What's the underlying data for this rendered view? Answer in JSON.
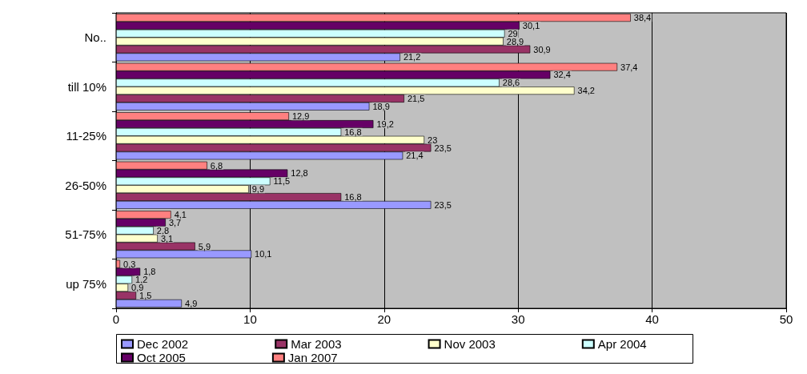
{
  "chart_data": {
    "type": "bar",
    "orientation": "horizontal",
    "categories": [
      "No..",
      "till 10%",
      "11-25%",
      "26-50%",
      "51-75%",
      "up 75%"
    ],
    "series": [
      {
        "name": "Dec 2002",
        "color": "#9999ff",
        "values": [
          21.2,
          18.9,
          21.4,
          23.5,
          10.1,
          4.9
        ],
        "value_labels": [
          "21,2",
          "18,9",
          "21,4",
          "23,5",
          "10,1",
          "4,9"
        ]
      },
      {
        "name": "Mar 2003",
        "color": "#993366",
        "values": [
          30.9,
          21.5,
          23.5,
          16.8,
          5.9,
          1.5
        ],
        "value_labels": [
          "30,9",
          "21,5",
          "23,5",
          "16,8",
          "5,9",
          "1,5"
        ]
      },
      {
        "name": "Nov 2003",
        "color": "#ffffcc",
        "values": [
          28.9,
          34.2,
          23,
          9.9,
          3.1,
          0.9
        ],
        "value_labels": [
          "28,9",
          "34,2",
          "23",
          "9,9",
          "3,1",
          "0,9"
        ]
      },
      {
        "name": "Apr 2004",
        "color": "#ccffff",
        "values": [
          29,
          28.6,
          16.8,
          11.5,
          2.8,
          1.2
        ],
        "value_labels": [
          "29",
          "28,6",
          "16,8",
          "11,5",
          "2,8",
          "1,2"
        ]
      },
      {
        "name": "Oct 2005",
        "color": "#660066",
        "values": [
          30.1,
          32.4,
          19.2,
          12.8,
          3.7,
          1.8
        ],
        "value_labels": [
          "30,1",
          "32,4",
          "19,2",
          "12,8",
          "3,7",
          "1,8"
        ]
      },
      {
        "name": "Jan 2007",
        "color": "#ff8080",
        "values": [
          38.4,
          37.4,
          12.9,
          6.8,
          4.1,
          0.3
        ],
        "value_labels": [
          "38,4",
          "37,4",
          "12,9",
          "6,8",
          "4,1",
          "0,3"
        ]
      }
    ],
    "xlim": [
      0,
      50
    ],
    "xticks": [
      0,
      10,
      20,
      30,
      40,
      50
    ],
    "grid": "x",
    "legend": "bottom"
  }
}
